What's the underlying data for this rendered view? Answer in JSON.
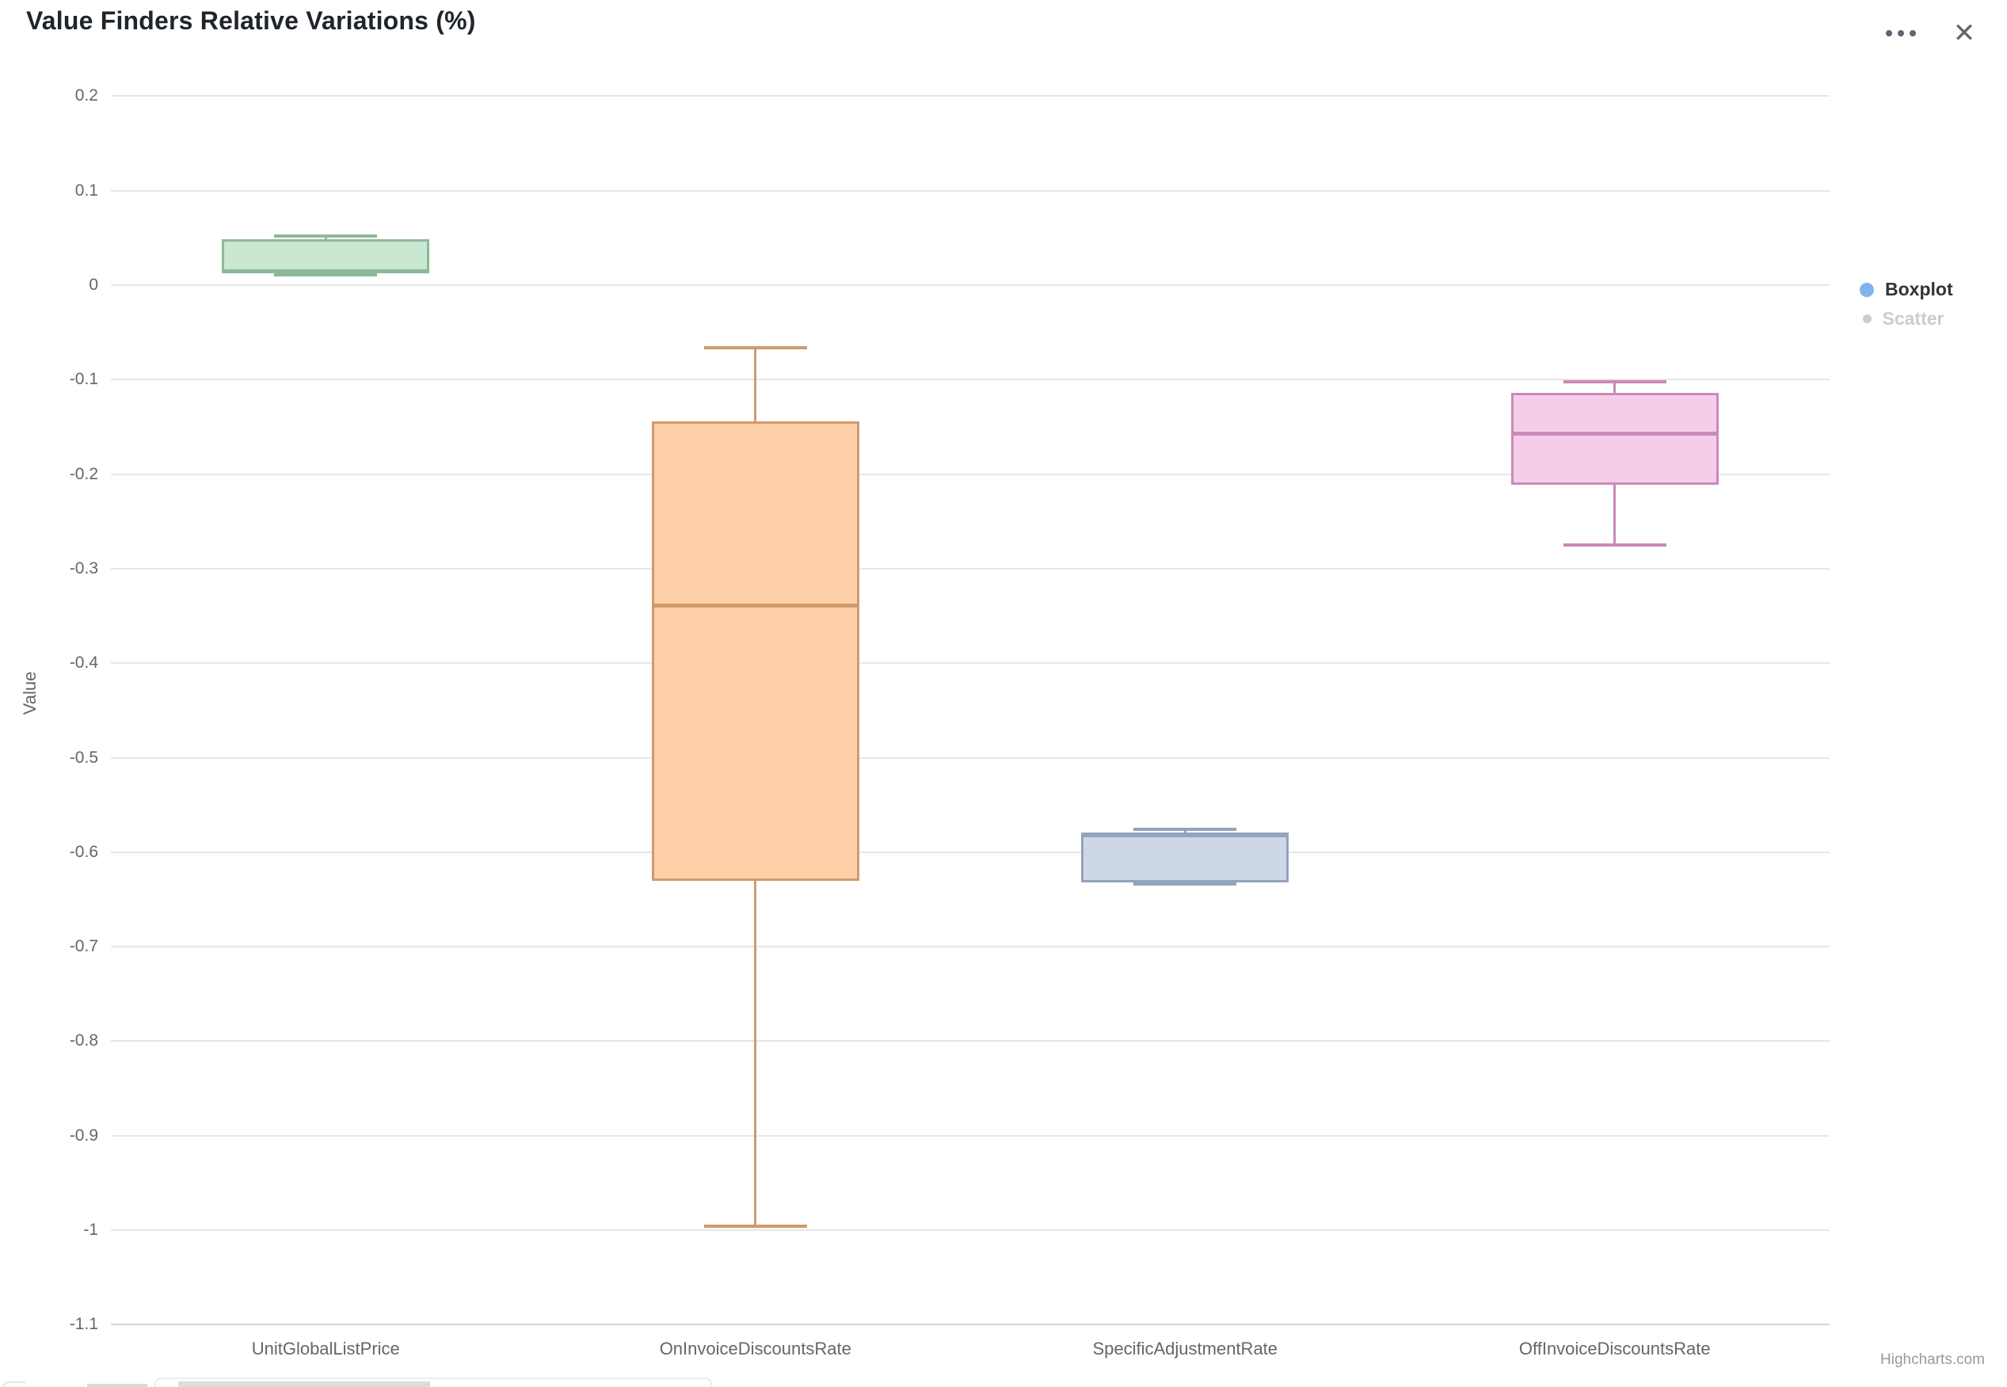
{
  "header": {
    "title": "Value Finders Relative Variations (%)",
    "menu_icon": "ellipsis-icon",
    "close_icon": "close-icon",
    "close_glyph": "✕",
    "icon_color": "#5f6672"
  },
  "legend": {
    "position": "right",
    "items": [
      {
        "label": "Boxplot",
        "marker_color": "#7fb5ec",
        "text_color": "#333333",
        "marker_size": 18,
        "active": true
      },
      {
        "label": "Scatter",
        "marker_color": "#cccccc",
        "text_color": "#cccccc",
        "marker_size": 11,
        "active": false
      }
    ]
  },
  "chart_data": {
    "type": "boxplot",
    "title": "Value Finders Relative Variations (%)",
    "xlabel": "",
    "ylabel": "Value",
    "ylim": [
      -1.1,
      0.2
    ],
    "grid": true,
    "legend_position": "right",
    "categories": [
      "UnitGlobalListPrice",
      "OnInvoiceDiscountsRate",
      "SpecificAdjustmentRate",
      "OffInvoiceDiscountsRate"
    ],
    "yticks": [
      {
        "v": 0.2,
        "label": "0.2"
      },
      {
        "v": 0.1,
        "label": "0.1"
      },
      {
        "v": 0,
        "label": "0"
      },
      {
        "v": -0.1,
        "label": "-0.1"
      },
      {
        "v": -0.2,
        "label": "-0.2"
      },
      {
        "v": -0.3,
        "label": "-0.3"
      },
      {
        "v": -0.4,
        "label": "-0.4"
      },
      {
        "v": -0.5,
        "label": "-0.5"
      },
      {
        "v": -0.6,
        "label": "-0.6"
      },
      {
        "v": -0.7,
        "label": "-0.7"
      },
      {
        "v": -0.8,
        "label": "-0.8"
      },
      {
        "v": -0.9,
        "label": "-0.9"
      },
      {
        "v": -1,
        "label": "-1"
      },
      {
        "v": -1.1,
        "label": "-1.1"
      }
    ],
    "series": [
      {
        "name": "Boxplot",
        "points": [
          {
            "category": "UnitGlobalListPrice",
            "low": 0.011,
            "q1": 0.013,
            "median": 0.0145,
            "q3": 0.049,
            "high": 0.052,
            "fill": "#c9e7d1",
            "stroke": "#8bb999"
          },
          {
            "category": "OnInvoiceDiscountsRate",
            "low": -0.996,
            "q1": -0.63,
            "median": -0.339,
            "q3": -0.144,
            "high": -0.066,
            "fill": "#fdd0a7",
            "stroke": "#d09a6d"
          },
          {
            "category": "SpecificAdjustmentRate",
            "low": -0.634,
            "q1": -0.632,
            "median": -0.582,
            "q3": -0.579,
            "high": -0.576,
            "fill": "#cdd7e7",
            "stroke": "#93a3bd"
          },
          {
            "category": "OffInvoiceDiscountsRate",
            "low": -0.275,
            "q1": -0.211,
            "median": -0.157,
            "q3": -0.114,
            "high": -0.102,
            "fill": "#f5cde9",
            "stroke": "#c98ab8"
          }
        ]
      },
      {
        "name": "Scatter",
        "points": [],
        "visible": false
      }
    ]
  },
  "credits": "Highcharts.com"
}
